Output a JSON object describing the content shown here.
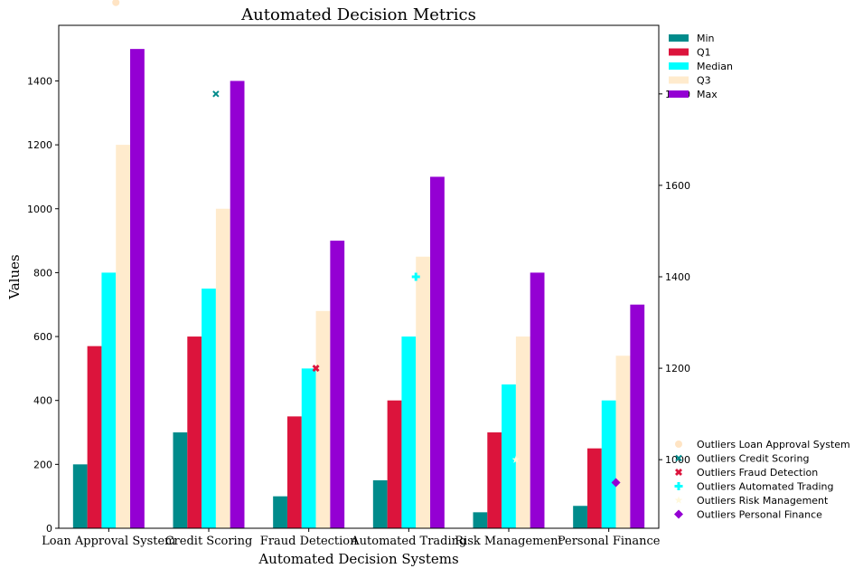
{
  "chart_data": {
    "type": "bar",
    "title": "Automated Decision Metrics",
    "xlabel": "Automated Decision Systems",
    "ylabel": "Values",
    "categories": [
      "Loan Approval System",
      "Credit Scoring",
      "Fraud Detection",
      "Automated Trading",
      "Risk Management",
      "Personal Finance"
    ],
    "ylim": [
      0,
      1574
    ],
    "yticks": [
      0,
      200,
      400,
      600,
      800,
      1000,
      1200,
      1400
    ],
    "series": [
      {
        "name": "Min",
        "color": "#008b8b",
        "values": [
          200,
          300,
          100,
          150,
          50,
          70
        ]
      },
      {
        "name": "Q1",
        "color": "#dc143c",
        "values": [
          570,
          600,
          350,
          400,
          300,
          250
        ]
      },
      {
        "name": "Median",
        "color": "#00ffff",
        "values": [
          800,
          750,
          500,
          600,
          450,
          400
        ]
      },
      {
        "name": "Q3",
        "color": "#ffebcd",
        "values": [
          1200,
          1000,
          680,
          850,
          600,
          540
        ]
      },
      {
        "name": "Max",
        "color": "#9400d3",
        "values": [
          1500,
          1400,
          900,
          1100,
          800,
          700
        ]
      }
    ],
    "secondary_axis": {
      "ylim": [
        850,
        1950
      ],
      "yticks": [
        1000,
        1200,
        1400,
        1600,
        1800
      ]
    },
    "outliers": [
      {
        "name": "Outliers Loan Approval System",
        "category": "Loan Approval System",
        "values": [
          2000
        ],
        "marker": "circle",
        "color": "#ffe4c4"
      },
      {
        "name": "Outliers Credit Scoring",
        "category": "Credit Scoring",
        "values": [
          1800
        ],
        "marker": "x",
        "color": "#008b8b"
      },
      {
        "name": "Outliers Fraud Detection",
        "category": "Fraud Detection",
        "values": [
          1200
        ],
        "marker": "X",
        "color": "#dc143c"
      },
      {
        "name": "Outliers Automated Trading",
        "category": "Automated Trading",
        "values": [
          1400
        ],
        "marker": "plus",
        "color": "#00ffff"
      },
      {
        "name": "Outliers Risk Management",
        "category": "Risk Management",
        "values": [
          1000
        ],
        "marker": "star",
        "color": "#fff8dc"
      },
      {
        "name": "Outliers Personal Finance",
        "category": "Personal Finance",
        "values": [
          950
        ],
        "marker": "diamond",
        "color": "#9400d3"
      }
    ],
    "grid": false,
    "legend_placement": "top-right, outside plot",
    "outlier_legend_placement": "bottom-right, outside plot"
  }
}
